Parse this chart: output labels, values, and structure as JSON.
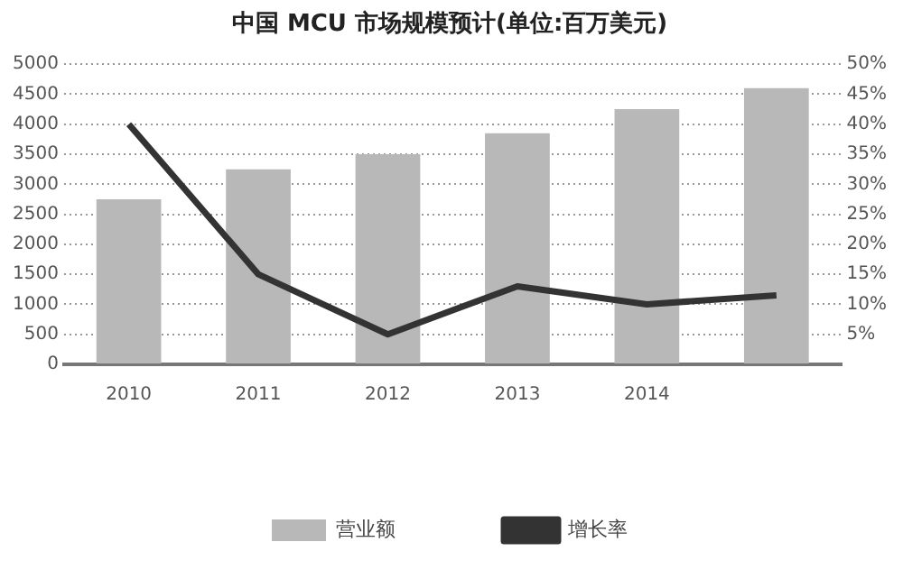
{
  "chart_data": {
    "type": "bar",
    "title": "中国 MCU 市场规模预计(单位:百万美元)",
    "categories": [
      "2010",
      "2011",
      "2012",
      "2013",
      "2014",
      null
    ],
    "series": [
      {
        "name": "营业额",
        "color": "#b8b8b8",
        "values": [
          2750,
          3250,
          3500,
          3850,
          4250,
          4600
        ]
      },
      {
        "name": "增长率",
        "type": "line",
        "axis": "y2",
        "color": "#333333",
        "values": [
          40,
          15,
          5,
          13,
          10,
          11.5
        ]
      }
    ],
    "ylim": [
      0,
      5000
    ],
    "yticks": [
      0,
      500,
      1000,
      1500,
      2000,
      2500,
      3000,
      3500,
      4000,
      4500,
      5000
    ],
    "y2lim": [
      0,
      50
    ],
    "y2ticks": [
      {
        "value": 5,
        "label": "5%"
      },
      {
        "value": 10,
        "label": "10%"
      },
      {
        "value": 15,
        "label": "15%"
      },
      {
        "value": 20,
        "label": "20%"
      },
      {
        "value": 25,
        "label": "25%"
      },
      {
        "value": 30,
        "label": "30%"
      },
      {
        "value": 35,
        "label": "35%"
      },
      {
        "value": 40,
        "label": "40%"
      },
      {
        "value": 45,
        "label": "45%"
      },
      {
        "value": 50,
        "label": "50%"
      }
    ],
    "grid": "y",
    "legend": "bottom",
    "marker": "none",
    "line_style": "solid"
  }
}
